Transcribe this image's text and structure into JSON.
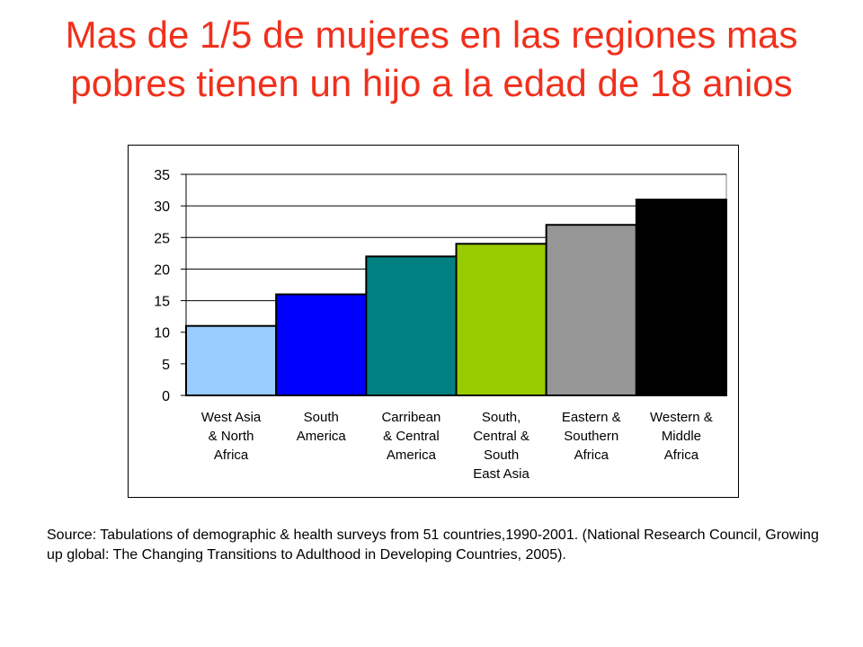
{
  "slide": {
    "title": "Mas de 1/5 de mujeres en las regiones mas pobres tienen un hijo a la edad de 18 anios",
    "source_note": "Source: Tabulations of demographic & health surveys from 51 countries,1990-2001. (National Research Council, Growing up global: The Changing Transitions to Adulthood in Developing Countries, 2005).",
    "title_color": "#f0301c"
  },
  "chart_data": {
    "type": "bar",
    "title": "",
    "xlabel": "",
    "ylabel": "",
    "ylim": [
      0,
      35
    ],
    "yticks": [
      0,
      5,
      10,
      15,
      20,
      25,
      30,
      35
    ],
    "grid": true,
    "legend": "none",
    "categories": [
      [
        "West Asia",
        "& North",
        "Africa"
      ],
      [
        "South",
        "America"
      ],
      [
        "Carribean",
        "& Central",
        "America"
      ],
      [
        "South,",
        "Central &",
        "South",
        "East Asia"
      ],
      [
        "Eastern &",
        "Southern",
        "Africa"
      ],
      [
        "Western &",
        "Middle",
        "Africa"
      ]
    ],
    "values": [
      11,
      16,
      22,
      24,
      27,
      31
    ],
    "colors": [
      "#99ccff",
      "#0000ff",
      "#008080",
      "#99cc00",
      "#969696",
      "#000000"
    ]
  }
}
